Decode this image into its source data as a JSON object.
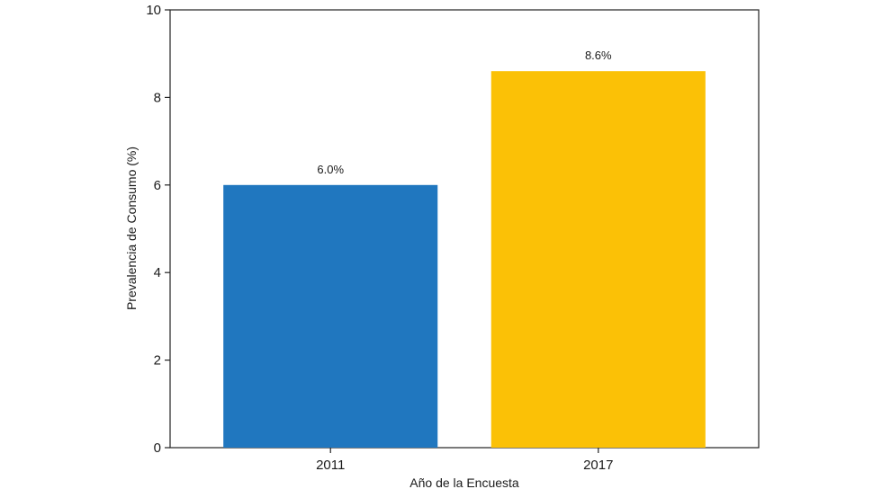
{
  "chart_data": {
    "type": "bar",
    "title": "",
    "xlabel": "Año de la Encuesta",
    "ylabel": "Prevalencia de Consumo (%)",
    "categories": [
      "2011",
      "2017"
    ],
    "values": [
      6.0,
      8.6
    ],
    "data_labels": [
      "6.0%",
      "8.6%"
    ],
    "bar_colors": [
      "#2077BF",
      "#FBC106"
    ],
    "ylim": [
      0,
      10
    ],
    "yticks": [
      0,
      2,
      4,
      6,
      8,
      10
    ],
    "ytick_labels": [
      "0",
      "2",
      "4",
      "6",
      "8",
      "10"
    ],
    "grid": false,
    "legend": "none"
  }
}
